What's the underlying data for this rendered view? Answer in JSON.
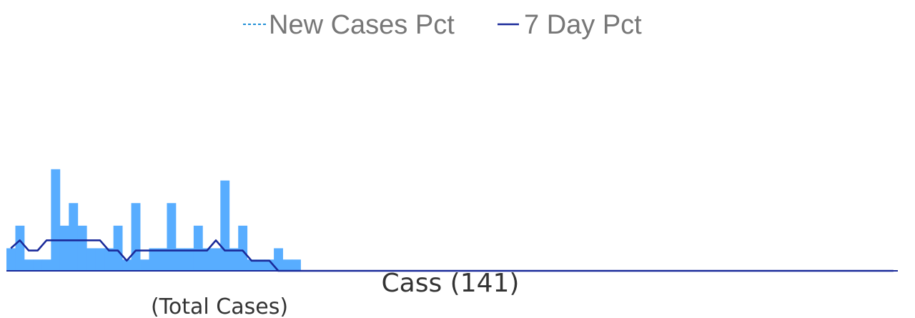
{
  "chart_data": {
    "type": "bar",
    "title": "Cass (141)",
    "subtitle": "(Total Cases)",
    "legend": {
      "placement": "top-center",
      "entries": [
        {
          "label": "New Cases Pct",
          "style": "dashed",
          "color": "#1f8fd6"
        },
        {
          "label": "7 Day Pct",
          "style": "solid",
          "color": "#1a2a9a"
        }
      ]
    },
    "colors": {
      "bars": "#58adff",
      "avg_line": "#1a2a9a",
      "legend_dash": "#1f8fd6",
      "axis": "#1a2a9a"
    },
    "ylim": [
      0,
      20
    ],
    "grid": false,
    "series": [
      {
        "name": "New Cases Pct",
        "type": "bar",
        "values": [
          2,
          4,
          1,
          1,
          1,
          9,
          4,
          6,
          4,
          2,
          2,
          2,
          4,
          1,
          6,
          1,
          2,
          2,
          6,
          2,
          2,
          4,
          2,
          2,
          8,
          2,
          4,
          1,
          1,
          1,
          2,
          1,
          1,
          0,
          0,
          0,
          0,
          0,
          0,
          0,
          0,
          0,
          0,
          0,
          0,
          0,
          0,
          0,
          0,
          0,
          0,
          0,
          0,
          0,
          0,
          0,
          0,
          0,
          0,
          0,
          0,
          0,
          0,
          0,
          0,
          0,
          0,
          0,
          0,
          0,
          0,
          0,
          0,
          0,
          0,
          0,
          0,
          0,
          0,
          0,
          0,
          0,
          0,
          0,
          0,
          0,
          0,
          0,
          0,
          0,
          0,
          0,
          0,
          0,
          0,
          0,
          0,
          0,
          0,
          0
        ]
      },
      {
        "name": "7 Day Pct",
        "type": "line",
        "values": [
          2,
          2.7,
          1.8,
          1.8,
          2.7,
          2.7,
          2.7,
          2.7,
          2.7,
          2.7,
          2.7,
          1.8,
          1.8,
          0.9,
          1.8,
          1.8,
          1.8,
          1.8,
          1.8,
          1.8,
          1.8,
          1.8,
          1.8,
          2.7,
          1.8,
          1.8,
          1.8,
          0.9,
          0.9,
          0.9,
          0,
          0,
          0,
          0,
          0,
          0,
          0,
          0,
          0,
          0,
          0,
          0,
          0,
          0,
          0,
          0,
          0,
          0,
          0,
          0,
          0,
          0,
          0,
          0,
          0,
          0,
          0,
          0,
          0,
          0,
          0,
          0,
          0,
          0,
          0,
          0,
          0,
          0,
          0,
          0,
          0,
          0,
          0,
          0,
          0,
          0,
          0,
          0,
          0,
          0,
          0,
          0,
          0,
          0,
          0,
          0,
          0,
          0,
          0,
          0,
          0,
          0,
          0,
          0,
          0,
          0,
          0,
          0,
          0,
          0
        ]
      }
    ]
  }
}
